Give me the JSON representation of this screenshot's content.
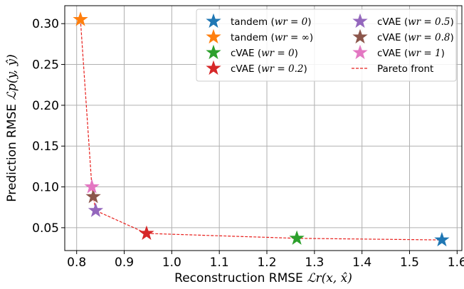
{
  "chart_data": {
    "type": "scatter",
    "xlabel": {
      "prefix": "Reconstruction RMSE ",
      "math": "ℒr(x, x̂)"
    },
    "ylabel": {
      "prefix": "Prediction RMSE ",
      "math": "ℒp(y, ŷ)"
    },
    "xlim": [
      0.775,
      1.61
    ],
    "ylim": [
      0.022,
      0.322
    ],
    "xticks": [
      "0.8",
      "0.9",
      "1.0",
      "1.1",
      "1.2",
      "1.3",
      "1.4",
      "1.5",
      "1.6"
    ],
    "yticks": [
      "0.05",
      "0.10",
      "0.15",
      "0.20",
      "0.25",
      "0.30"
    ],
    "grid": true,
    "legend_position": "top-right",
    "series": [
      {
        "name": "tandem",
        "param": "wr = 0",
        "color": "#1f77b4",
        "marker": "star",
        "x": 1.568,
        "y": 0.035
      },
      {
        "name": "tandem",
        "param": "wr = ∞",
        "color": "#ff7f0e",
        "marker": "star",
        "x": 0.808,
        "y": 0.305
      },
      {
        "name": "cVAE",
        "param": "wr = 0",
        "color": "#2ca02c",
        "marker": "star",
        "x": 1.263,
        "y": 0.037
      },
      {
        "name": "cVAE",
        "param": "wr = 0.2",
        "color": "#d62728",
        "marker": "star",
        "x": 0.947,
        "y": 0.043
      },
      {
        "name": "cVAE",
        "param": "wr = 0.5",
        "color": "#9467bd",
        "marker": "star",
        "x": 0.84,
        "y": 0.071
      },
      {
        "name": "cVAE",
        "param": "wr = 0.8",
        "color": "#8c564b",
        "marker": "star",
        "x": 0.835,
        "y": 0.088
      },
      {
        "name": "cVAE",
        "param": "wr = 1",
        "color": "#e377c2",
        "marker": "star",
        "x": 0.832,
        "y": 0.1
      }
    ],
    "pareto_front": {
      "name": "Pareto front",
      "color": "#e8201d",
      "style": "dashed",
      "x": [
        0.808,
        0.832,
        0.835,
        0.84,
        0.947,
        1.263,
        1.568
      ],
      "y": [
        0.305,
        0.1,
        0.088,
        0.071,
        0.043,
        0.037,
        0.035
      ]
    },
    "legend": [
      {
        "name": "tandem",
        "param": "wr = 0",
        "color": "#1f77b4",
        "kind": "star"
      },
      {
        "name": "tandem",
        "param": "wr = ∞",
        "color": "#ff7f0e",
        "kind": "star"
      },
      {
        "name": "cVAE",
        "param": "wr = 0",
        "color": "#2ca02c",
        "kind": "star"
      },
      {
        "name": "cVAE",
        "param": "wr = 0.2",
        "color": "#d62728",
        "kind": "star"
      },
      {
        "name": "cVAE",
        "param": "wr = 0.5",
        "color": "#9467bd",
        "kind": "star"
      },
      {
        "name": "cVAE",
        "param": "wr = 0.8",
        "color": "#8c564b",
        "kind": "star"
      },
      {
        "name": "cVAE",
        "param": "wr = 1",
        "color": "#e377c2",
        "kind": "star"
      },
      {
        "name": "Pareto front",
        "param": "",
        "color": "#e8201d",
        "kind": "line"
      }
    ]
  }
}
